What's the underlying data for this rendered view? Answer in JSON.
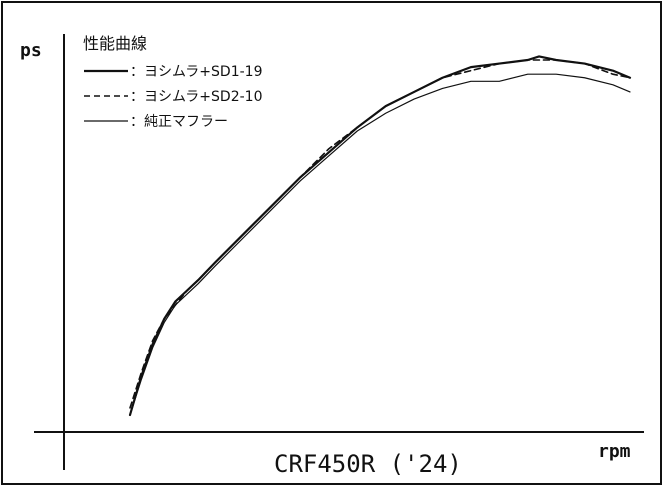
{
  "chart_data": {
    "type": "line",
    "title": "CRF450R ('24)",
    "xlabel": "rpm",
    "ylabel": "ps",
    "legend_title": "性能曲線",
    "legend_position": "top-left",
    "grid": false,
    "x_scale": "unlabeled",
    "y_scale": "unlabeled",
    "series": [
      {
        "name": "：ヨシムラ+SD1-19",
        "style": "solid-thick",
        "color": "#111111",
        "points": [
          [
            0.0,
            0.0
          ],
          [
            0.02,
            0.11
          ],
          [
            0.04,
            0.2
          ],
          [
            0.06,
            0.27
          ],
          [
            0.08,
            0.32
          ],
          [
            0.1,
            0.35
          ],
          [
            0.12,
            0.38
          ],
          [
            0.15,
            0.43
          ],
          [
            0.2,
            0.51
          ],
          [
            0.25,
            0.59
          ],
          [
            0.3,
            0.67
          ],
          [
            0.35,
            0.74
          ],
          [
            0.4,
            0.81
          ],
          [
            0.45,
            0.87
          ],
          [
            0.5,
            0.91
          ],
          [
            0.55,
            0.95
          ],
          [
            0.6,
            0.98
          ],
          [
            0.65,
            0.99
          ],
          [
            0.7,
            1.0
          ],
          [
            0.72,
            1.01
          ],
          [
            0.75,
            1.0
          ],
          [
            0.8,
            0.99
          ],
          [
            0.85,
            0.97
          ],
          [
            0.88,
            0.95
          ]
        ]
      },
      {
        "name": "：ヨシムラ+SD2-10",
        "style": "dashed",
        "color": "#111111",
        "points": [
          [
            0.0,
            0.02
          ],
          [
            0.02,
            0.12
          ],
          [
            0.04,
            0.21
          ],
          [
            0.06,
            0.27
          ],
          [
            0.08,
            0.31
          ],
          [
            0.1,
            0.35
          ],
          [
            0.12,
            0.38
          ],
          [
            0.15,
            0.43
          ],
          [
            0.2,
            0.51
          ],
          [
            0.25,
            0.59
          ],
          [
            0.3,
            0.67
          ],
          [
            0.35,
            0.75
          ],
          [
            0.4,
            0.81
          ],
          [
            0.45,
            0.87
          ],
          [
            0.5,
            0.91
          ],
          [
            0.55,
            0.95
          ],
          [
            0.6,
            0.97
          ],
          [
            0.65,
            0.99
          ],
          [
            0.7,
            1.0
          ],
          [
            0.72,
            1.0
          ],
          [
            0.75,
            1.0
          ],
          [
            0.8,
            0.99
          ],
          [
            0.85,
            0.96
          ],
          [
            0.88,
            0.95
          ]
        ]
      },
      {
        "name": "：純正マフラー",
        "style": "solid-thin",
        "color": "#111111",
        "points": [
          [
            0.0,
            0.0
          ],
          [
            0.02,
            0.1
          ],
          [
            0.04,
            0.19
          ],
          [
            0.06,
            0.26
          ],
          [
            0.08,
            0.31
          ],
          [
            0.1,
            0.34
          ],
          [
            0.12,
            0.37
          ],
          [
            0.15,
            0.42
          ],
          [
            0.2,
            0.5
          ],
          [
            0.25,
            0.58
          ],
          [
            0.3,
            0.66
          ],
          [
            0.35,
            0.73
          ],
          [
            0.4,
            0.8
          ],
          [
            0.45,
            0.85
          ],
          [
            0.5,
            0.89
          ],
          [
            0.55,
            0.92
          ],
          [
            0.6,
            0.94
          ],
          [
            0.65,
            0.94
          ],
          [
            0.7,
            0.96
          ],
          [
            0.72,
            0.96
          ],
          [
            0.75,
            0.96
          ],
          [
            0.8,
            0.95
          ],
          [
            0.85,
            0.93
          ],
          [
            0.88,
            0.91
          ]
        ]
      }
    ]
  }
}
